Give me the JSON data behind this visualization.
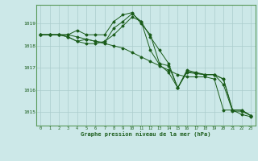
{
  "title": "Graphe pression niveau de la mer (hPa)",
  "bg_color": "#cce8e8",
  "plot_bg_color": "#cce8e8",
  "line_color": "#1a5c1a",
  "grid_color": "#aacccc",
  "axis_color": "#1a5c1a",
  "spine_color": "#5a9a5a",
  "ylabel_vals": [
    1015,
    1016,
    1017,
    1018,
    1019
  ],
  "xlabel_vals": [
    0,
    1,
    2,
    3,
    4,
    5,
    6,
    7,
    8,
    9,
    10,
    11,
    12,
    13,
    14,
    15,
    16,
    17,
    18,
    19,
    20,
    21,
    22,
    23
  ],
  "xlim": [
    -0.5,
    23.5
  ],
  "ylim": [
    1014.4,
    1019.85
  ],
  "series": [
    [
      1018.5,
      1018.5,
      1018.5,
      1018.5,
      1018.4,
      1018.3,
      1018.2,
      1018.1,
      1018.0,
      1017.9,
      1017.7,
      1017.5,
      1017.3,
      1017.1,
      1016.9,
      1016.7,
      1016.6,
      1016.6,
      1016.6,
      1016.5,
      1015.1,
      1015.1,
      1014.9,
      1014.8
    ],
    [
      1018.5,
      1018.5,
      1018.5,
      1018.4,
      1018.2,
      1018.1,
      1018.1,
      1018.2,
      1018.5,
      1018.9,
      1019.3,
      1019.1,
      1018.4,
      1017.8,
      1017.2,
      1016.1,
      1016.9,
      1016.8,
      1016.7,
      1016.7,
      1016.5,
      1015.1,
      1015.1,
      1014.85
    ],
    [
      1018.5,
      1018.5,
      1018.5,
      1018.4,
      1018.2,
      1018.3,
      1018.2,
      1018.15,
      1018.8,
      1019.1,
      1019.45,
      1019.1,
      1017.8,
      1017.15,
      1016.8,
      1016.1,
      1016.85,
      1016.75,
      1016.7,
      1016.7,
      1016.25,
      1015.05,
      1015.05,
      1014.85
    ],
    [
      1018.5,
      1018.5,
      1018.5,
      1018.5,
      1018.7,
      1018.5,
      1018.5,
      1018.5,
      1019.1,
      1019.4,
      1019.5,
      1019.0,
      1018.5,
      1017.2,
      1017.1,
      1016.1,
      1016.8,
      1016.75,
      1016.7,
      1016.7,
      1016.5,
      1015.1,
      1015.1,
      1014.85
    ]
  ]
}
